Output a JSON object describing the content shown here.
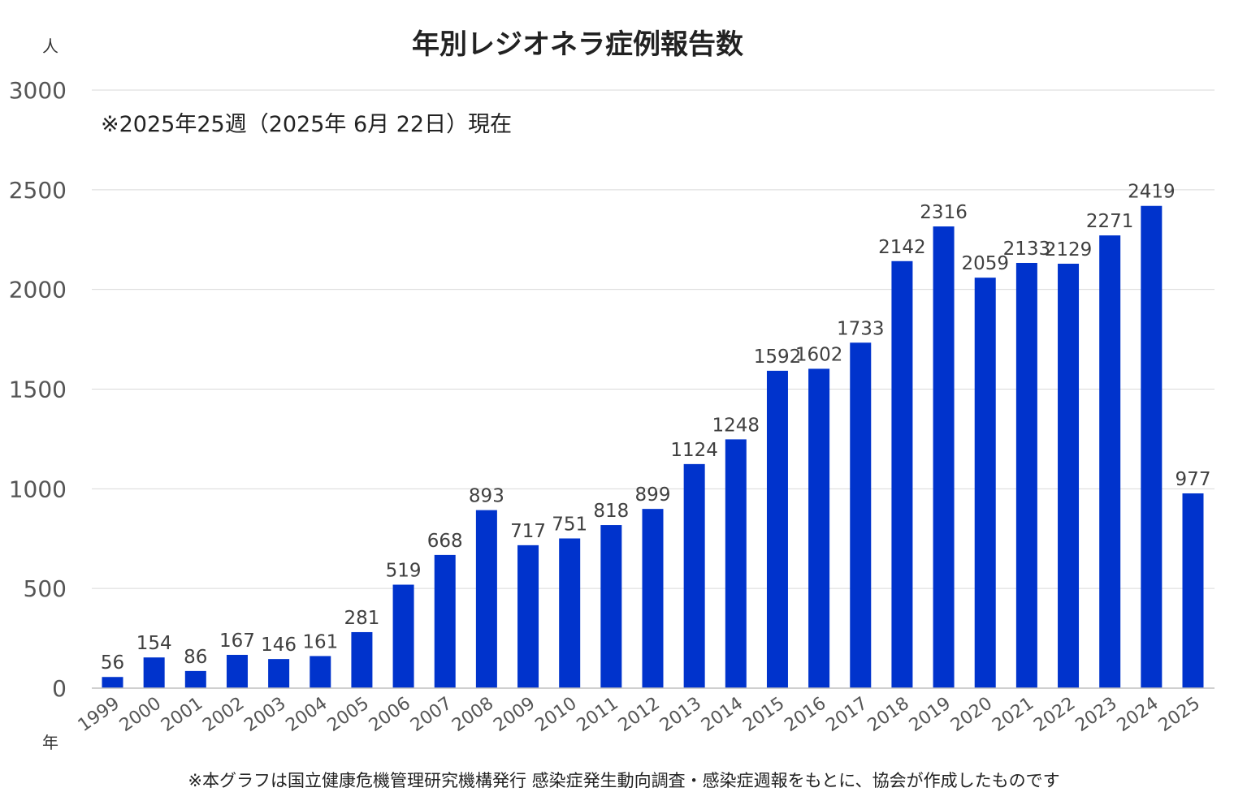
{
  "chart_data": {
    "type": "bar",
    "title": "年別レジオネラ症例報告数",
    "subtitle": "※2025年25週（2025年 6月 22日）現在",
    "ylabel": "人",
    "xlabel": "年",
    "footnote": "※本グラフは国立健康危機管理研究機構発行 感染症発生動向調査・感染症週報をもとに、協会が作成したものです",
    "ylim": [
      0,
      3000
    ],
    "yticks": [
      0,
      500,
      1000,
      1500,
      2000,
      2500,
      3000
    ],
    "grid": true,
    "legend": "none",
    "bar_color": "#0033cc",
    "categories": [
      "1999",
      "2000",
      "2001",
      "2002",
      "2003",
      "2004",
      "2005",
      "2006",
      "2007",
      "2008",
      "2009",
      "2010",
      "2011",
      "2012",
      "2013",
      "2014",
      "2015",
      "2016",
      "2017",
      "2018",
      "2019",
      "2020",
      "2021",
      "2022",
      "2023",
      "2024",
      "2025"
    ],
    "values": [
      56,
      154,
      86,
      167,
      146,
      161,
      281,
      519,
      668,
      893,
      717,
      751,
      818,
      899,
      1124,
      1248,
      1592,
      1602,
      1733,
      2142,
      2316,
      2059,
      2133,
      2129,
      2271,
      2419,
      977
    ]
  }
}
